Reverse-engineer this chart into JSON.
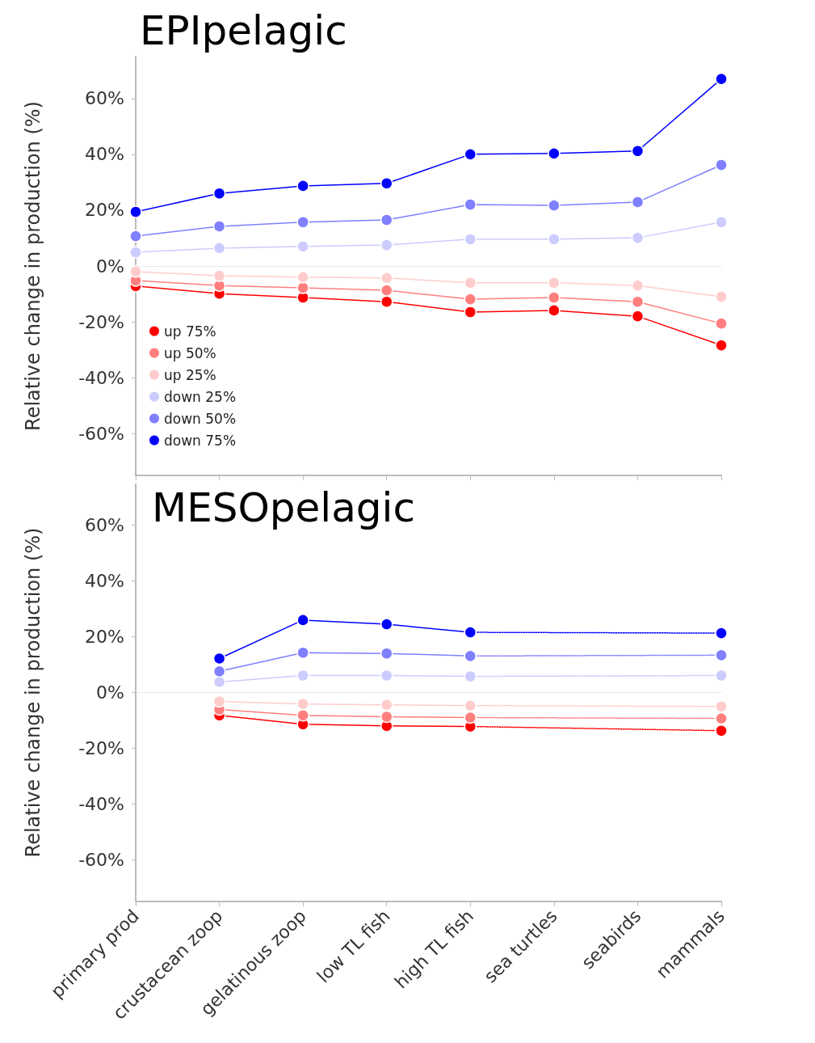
{
  "chart_data": [
    {
      "type": "line",
      "title": "EPIpelagic",
      "ylabel": "Relative change in production (%)",
      "categories": [
        null,
        null,
        null,
        null,
        null,
        null,
        null,
        null
      ],
      "ylim": [
        -75,
        75
      ],
      "yticks": [
        {
          "value": -60,
          "label": "-60%"
        },
        {
          "value": -40,
          "label": "-40%"
        },
        {
          "value": -20,
          "label": "-20%"
        },
        {
          "value": 0,
          "label": "0%"
        },
        {
          "value": 20,
          "label": "20%"
        },
        {
          "value": 40,
          "label": "40%"
        },
        {
          "value": 60,
          "label": "60%"
        }
      ],
      "grid": false,
      "legend": "bottom left",
      "marker": "circle",
      "line_style": "solid",
      "tick_labels": "y",
      "ref_lines": [
        {
          "axis": "y",
          "value": 0,
          "label": null,
          "color": "#d0d0d0",
          "line_style": "dotted"
        }
      ],
      "series": [
        {
          "name": "up 75%",
          "color": "#ff0000",
          "values": [
            -7.2,
            -9.9,
            -11.3,
            -12.8,
            -16.5,
            -15.9,
            -18,
            -28.4
          ]
        },
        {
          "name": "up 50%",
          "color": "#ff7f7f",
          "values": [
            -5.2,
            -7,
            -7.8,
            -8.7,
            -11.9,
            -11.3,
            -12.8,
            -20.6
          ]
        },
        {
          "name": "up 25%",
          "color": "#ffcccc",
          "values": [
            -2,
            -3.5,
            -4,
            -4.3,
            -6,
            -6,
            -7,
            -11
          ]
        },
        {
          "name": "down 25%",
          "color": "#ccccff",
          "values": [
            4.9,
            6.4,
            7,
            7.5,
            9.6,
            9.6,
            10.1,
            15.7
          ]
        },
        {
          "name": "down 50%",
          "color": "#7f7fff",
          "values": [
            10.7,
            14.2,
            15.7,
            16.5,
            22,
            21.7,
            22.9,
            36.2
          ]
        },
        {
          "name": "down 75%",
          "color": "#0000ff",
          "values": [
            19.4,
            26,
            28.7,
            29.6,
            40,
            40.3,
            41.2,
            67
          ]
        }
      ]
    },
    {
      "type": "line",
      "title": "MESOpelagic",
      "ylabel": "Relative change in production (%)",
      "categories": [
        "primary prod",
        "crustacean zoop",
        "gelatinous zoop",
        "low TL fish",
        "high TL fish",
        "sea turtles",
        "seabirds",
        "mammals"
      ],
      "ylim": [
        -75,
        75
      ],
      "yticks": [
        {
          "value": -60,
          "label": "-60%"
        },
        {
          "value": -40,
          "label": "-40%"
        },
        {
          "value": -20,
          "label": "-20%"
        },
        {
          "value": 0,
          "label": "0%"
        },
        {
          "value": 20,
          "label": "20%"
        },
        {
          "value": 40,
          "label": "40%"
        },
        {
          "value": 60,
          "label": "60%"
        }
      ],
      "grid": false,
      "marker": "circle",
      "line_style": "solid",
      "ref_lines": [
        {
          "axis": "y",
          "value": 0,
          "label": null,
          "color": "#d0d0d0",
          "line_style": "dotted"
        }
      ],
      "series": [
        {
          "color": "#ff0000",
          "values": [
            null,
            -8.2,
            -11.4,
            -12,
            -12.2,
            null,
            null,
            null
          ]
        },
        {
          "color": "#ff7f7f",
          "values": [
            null,
            -6.1,
            -8.2,
            -8.7,
            -9,
            null,
            null,
            null
          ]
        },
        {
          "color": "#ffcccc",
          "values": [
            null,
            -3.2,
            -4.1,
            -4.4,
            -4.7,
            null,
            null,
            null
          ]
        },
        {
          "color": "#ccccff",
          "values": [
            null,
            3.8,
            6.1,
            6.1,
            5.8,
            null,
            null,
            null
          ]
        },
        {
          "color": "#7f7fff",
          "values": [
            null,
            7.6,
            14.3,
            14,
            13.1,
            null,
            null,
            null
          ]
        },
        {
          "color": "#0000ff",
          "values": [
            null,
            12.2,
            26,
            24.5,
            21.6,
            null,
            null,
            null
          ]
        },
        {
          "color": "#ff0000",
          "line_style": "dotted",
          "values": [
            null,
            null,
            null,
            null,
            -12.2,
            null,
            null,
            -13.7
          ]
        },
        {
          "color": "#ff7f7f",
          "line_style": "dotted",
          "values": [
            null,
            null,
            null,
            null,
            -9,
            null,
            null,
            -9.3
          ]
        },
        {
          "color": "#ffcccc",
          "line_style": "dotted",
          "values": [
            null,
            null,
            null,
            null,
            -4.7,
            null,
            null,
            -5
          ]
        },
        {
          "color": "#ccccff",
          "line_style": "dotted",
          "values": [
            null,
            null,
            null,
            null,
            5.8,
            null,
            null,
            6.1
          ]
        },
        {
          "color": "#7f7fff",
          "line_style": "dotted",
          "values": [
            null,
            null,
            null,
            null,
            13.1,
            null,
            null,
            13.4
          ]
        },
        {
          "color": "#0000ff",
          "line_style": "dotted",
          "values": [
            null,
            null,
            null,
            null,
            21.6,
            null,
            null,
            21.3
          ]
        }
      ]
    }
  ]
}
